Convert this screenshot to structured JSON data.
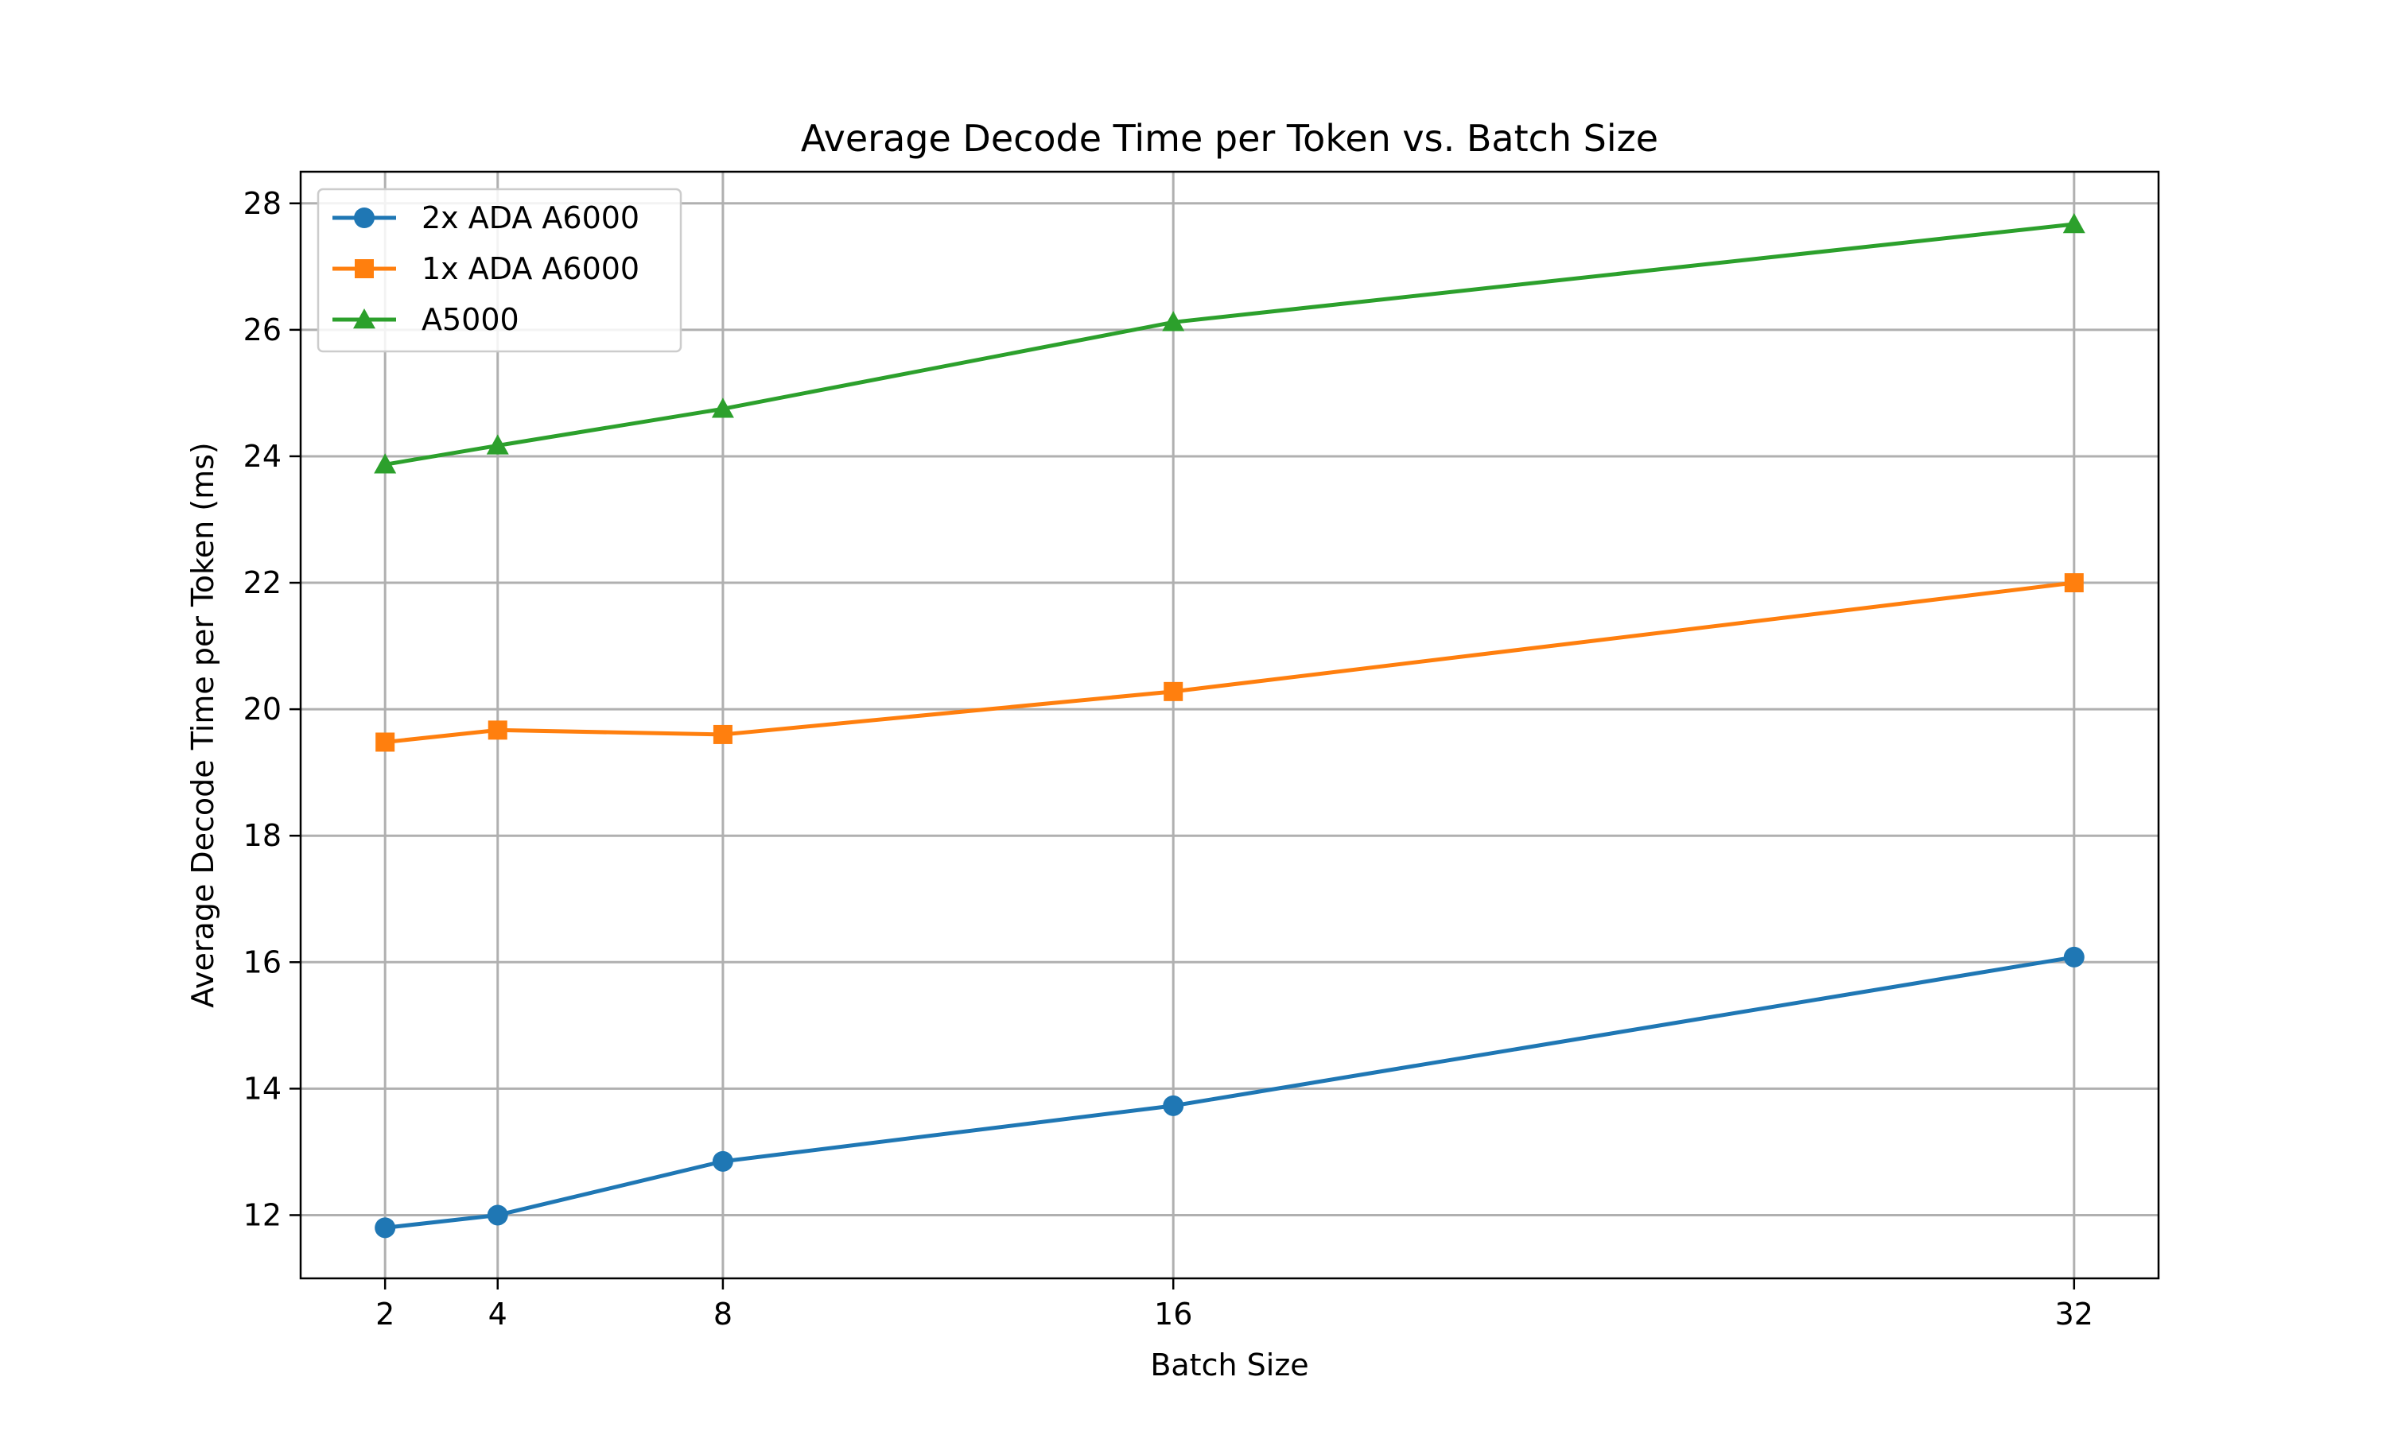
{
  "chart_data": {
    "type": "line",
    "title": "Average Decode Time per Token vs. Batch Size",
    "xlabel": "Batch Size",
    "ylabel": "Average Decode Time per Token (ms)",
    "x": [
      2,
      4,
      8,
      16,
      32
    ],
    "xticks": [
      2,
      4,
      8,
      16,
      32
    ],
    "xlim": [
      0.5,
      33.5
    ],
    "yticks": [
      12,
      14,
      16,
      18,
      20,
      22,
      24,
      26,
      28
    ],
    "ylim": [
      11.0,
      28.5
    ],
    "grid": true,
    "legend_position": "upper-left",
    "series": [
      {
        "name": "2x ADA A6000",
        "color": "#1f77b4",
        "marker": "circle",
        "values": [
          11.8,
          12.0,
          12.85,
          13.73,
          16.08
        ]
      },
      {
        "name": "1x ADA A6000",
        "color": "#ff7f0e",
        "marker": "square",
        "values": [
          19.48,
          19.67,
          19.6,
          20.28,
          22.0
        ]
      },
      {
        "name": "A5000",
        "color": "#2ca02c",
        "marker": "triangle",
        "values": [
          23.87,
          24.17,
          24.75,
          26.12,
          27.67
        ]
      }
    ]
  }
}
